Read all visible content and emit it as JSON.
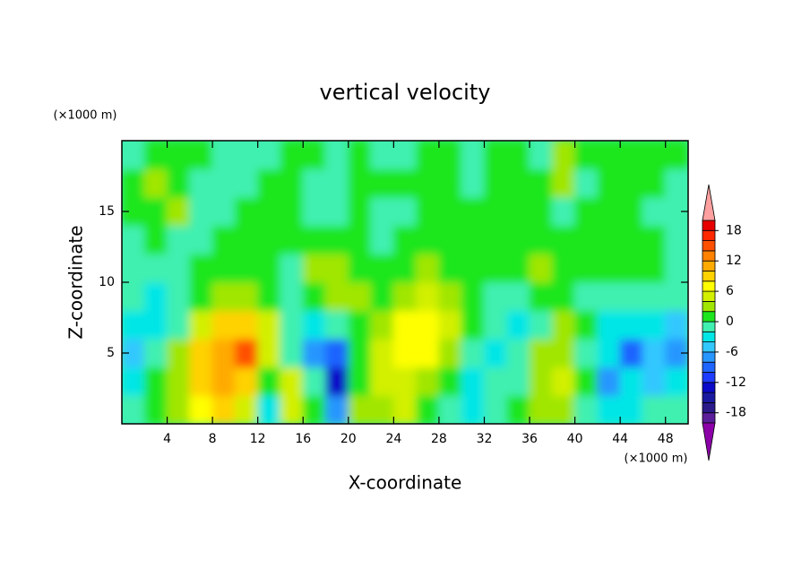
{
  "chart_data": {
    "type": "contour",
    "title": "vertical velocity",
    "x_label": "X-coordinate",
    "y_label": "Z-coordinate",
    "x_unit_label": "(×1000 m)",
    "y_unit_label": "(×1000 m)",
    "xlim": [
      0,
      50
    ],
    "ylim": [
      0,
      20
    ],
    "xticks": [
      4,
      8,
      12,
      16,
      20,
      24,
      28,
      32,
      36,
      40,
      44,
      48
    ],
    "yticks": [
      5,
      10,
      15
    ],
    "x": [
      1,
      3,
      5,
      7,
      9,
      11,
      13,
      15,
      17,
      19,
      21,
      23,
      25,
      27,
      29,
      31,
      33,
      35,
      37,
      39,
      41,
      43,
      45,
      47,
      49
    ],
    "y": [
      1,
      3,
      5,
      7,
      9,
      11,
      13,
      15,
      17,
      19
    ],
    "z": [
      [
        -1,
        1,
        3,
        6,
        8,
        5,
        -4,
        5,
        0,
        -8,
        2,
        3,
        4,
        1,
        -2,
        -4,
        -1,
        0,
        2,
        3,
        -1,
        -4,
        -3,
        -2,
        -1
      ],
      [
        -3,
        0,
        3,
        8,
        11,
        8,
        1,
        4,
        -2,
        -14,
        0,
        4,
        5,
        3,
        0,
        -3,
        -2,
        -1,
        3,
        5,
        1,
        -7,
        -4,
        -6,
        -4
      ],
      [
        -5,
        -2,
        2,
        8,
        11,
        14,
        4,
        -2,
        -8,
        -10,
        1,
        5,
        7,
        6,
        2,
        -2,
        -3,
        -2,
        2,
        3,
        -1,
        -4,
        -9,
        -6,
        -8
      ],
      [
        -4,
        -3,
        -1,
        5,
        9,
        8,
        4,
        -2,
        -4,
        -2,
        1,
        3,
        6,
        7,
        4,
        0,
        -2,
        -3,
        -1,
        2,
        0,
        -3,
        -4,
        -3,
        -5
      ],
      [
        -2,
        -3,
        -2,
        1,
        3,
        3,
        1,
        -1,
        1,
        3,
        2,
        1,
        3,
        5,
        3,
        1,
        -1,
        -2,
        0,
        1,
        -1,
        -2,
        -2,
        -1,
        -2
      ],
      [
        -2,
        -1,
        -1,
        0,
        1,
        1,
        0,
        -1,
        3,
        2,
        1,
        1,
        1,
        2,
        1,
        1,
        0,
        1,
        2,
        1,
        1,
        0,
        1,
        0,
        -1
      ],
      [
        -1,
        0,
        -1,
        -1,
        0,
        1,
        1,
        0,
        1,
        1,
        0,
        -1,
        1,
        1,
        0,
        0,
        1,
        1,
        1,
        1,
        0,
        1,
        1,
        0,
        -1
      ],
      [
        0,
        1,
        3,
        -1,
        -1,
        1,
        1,
        1,
        -1,
        -1,
        1,
        -1,
        -1,
        0,
        1,
        1,
        0,
        1,
        1,
        -1,
        1,
        1,
        1,
        -1,
        -1
      ],
      [
        1,
        3,
        1,
        -1,
        -1,
        -1,
        1,
        1,
        -1,
        -1,
        1,
        1,
        1,
        1,
        1,
        -1,
        0,
        1,
        1,
        3,
        -1,
        1,
        1,
        1,
        -1
      ],
      [
        -1,
        1,
        1,
        1,
        -1,
        -1,
        -1,
        1,
        0,
        -1,
        1,
        -1,
        -1,
        0,
        1,
        -1,
        1,
        1,
        -1,
        3,
        1,
        1,
        1,
        0,
        1
      ]
    ],
    "levels": [
      -20,
      -18,
      -16,
      -14,
      -12,
      -10,
      -8,
      -6,
      -4,
      -2,
      0,
      2,
      4,
      6,
      8,
      10,
      12,
      14,
      16,
      18,
      20
    ],
    "colors": [
      "#8c00a8",
      "#5a1e9a",
      "#2a1a8a",
      "#1a1aa0",
      "#0a0ac8",
      "#1e3cff",
      "#1e64ff",
      "#2896ff",
      "#32c8ff",
      "#00e6e6",
      "#40f0b0",
      "#1ee61e",
      "#a0e600",
      "#d2f000",
      "#ffff00",
      "#ffd200",
      "#ffaa00",
      "#ff8200",
      "#ff5000",
      "#ff2800",
      "#e60000",
      "#ffa0a0"
    ],
    "colorbar_ticks": [
      -18,
      -12,
      -6,
      0,
      6,
      12,
      18
    ]
  }
}
